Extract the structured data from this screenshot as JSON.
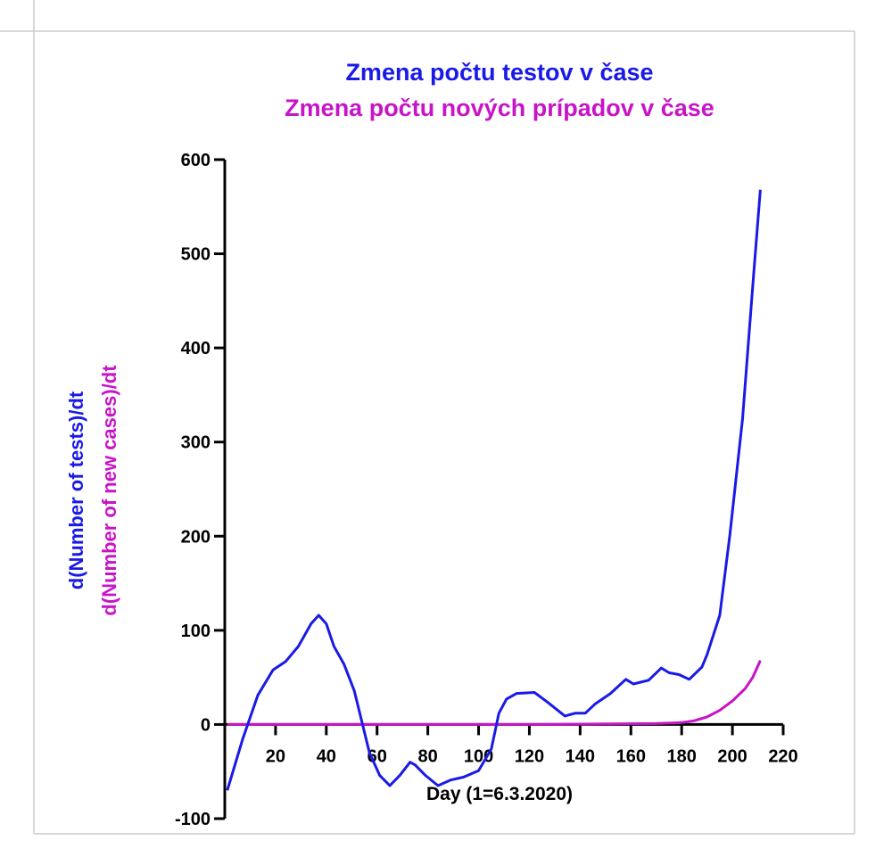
{
  "chart_data": {
    "type": "line",
    "title": [
      "Zmena počtu testov v čase",
      "Zmena počtu nových prípadov v čase"
    ],
    "title_colors": [
      "#1a1ae6",
      "#c814c8"
    ],
    "xlabel": "Day (1=6.3.2020)",
    "ylabel": [
      "d(Number of tests)/dt",
      "d(Number of new cases)/dt"
    ],
    "xlim": [
      0,
      220
    ],
    "xticks": [
      20,
      40,
      60,
      80,
      100,
      120,
      140,
      160,
      180,
      200,
      220
    ],
    "ylim": [
      -100,
      600
    ],
    "yticks": [
      -100,
      0,
      100,
      200,
      300,
      400,
      500,
      600
    ],
    "series": [
      {
        "color": "#1a1ae6",
        "x": [
          1,
          7,
          13,
          19,
          24,
          29,
          34,
          37,
          40,
          43,
          47,
          51,
          54,
          57,
          61,
          65,
          69,
          73,
          75,
          79,
          84,
          89,
          94,
          100,
          105,
          108,
          111,
          115,
          122,
          127,
          134,
          138,
          142,
          146,
          152,
          158,
          161,
          167,
          172,
          175,
          179,
          183,
          188,
          190,
          195,
          199,
          204,
          208,
          211
        ],
        "values": [
          -70,
          -16,
          31,
          58,
          67,
          83,
          107,
          116,
          107,
          83,
          64,
          36,
          3,
          -30,
          -54,
          -65,
          -54,
          -40,
          -43,
          -54,
          -65,
          -59,
          -56,
          -49,
          -26,
          12,
          27,
          33,
          34,
          24,
          9,
          12,
          12,
          22,
          33,
          48,
          43,
          47,
          60,
          55,
          53,
          48,
          61,
          74,
          116,
          201,
          325,
          466,
          568
        ]
      },
      {
        "color": "#c814c8",
        "x": [
          1,
          60,
          120,
          170,
          180,
          185,
          190,
          195,
          200,
          205,
          208,
          211
        ],
        "values": [
          0,
          0,
          0,
          1,
          2,
          4,
          8,
          15,
          25,
          38,
          50,
          68
        ]
      }
    ]
  }
}
